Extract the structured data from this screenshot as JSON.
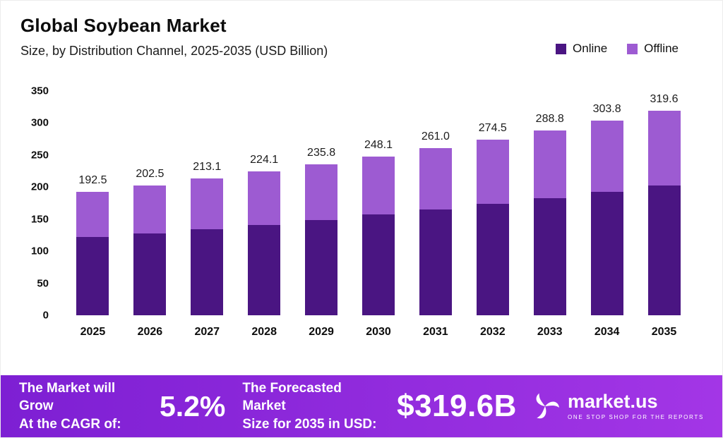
{
  "header": {
    "title": "Global Soybean Market",
    "subtitle": "Size, by Distribution Channel, 2025-2035 (USD Billion)"
  },
  "legend": [
    {
      "label": "Online",
      "color": "#4a1582"
    },
    {
      "label": "Offline",
      "color": "#9d5bd2"
    }
  ],
  "colors": {
    "online": "#4a1582",
    "offline": "#9d5bd2",
    "banner_start": "#7d1fd3",
    "banner_end": "#a336e6",
    "label_text": "#1c1c1c"
  },
  "chart_data": {
    "type": "bar",
    "stacked": true,
    "title": "Global Soybean Market",
    "subtitle": "Size, by Distribution Channel, 2025-2035 (USD Billion)",
    "categories": [
      "2025",
      "2026",
      "2027",
      "2028",
      "2029",
      "2030",
      "2031",
      "2032",
      "2033",
      "2034",
      "2035"
    ],
    "series": [
      {
        "name": "Online",
        "color": "#4a1582",
        "values": [
          122.0,
          128.0,
          134.0,
          141.0,
          149.0,
          157.0,
          165.0,
          174.0,
          183.0,
          193.0,
          202.0
        ]
      },
      {
        "name": "Offline",
        "color": "#9d5bd2",
        "values": [
          70.5,
          74.5,
          79.1,
          83.1,
          86.8,
          91.1,
          96.0,
          100.5,
          105.8,
          110.8,
          117.6
        ]
      }
    ],
    "totals": [
      192.5,
      202.5,
      213.1,
      224.1,
      235.8,
      248.1,
      261.0,
      274.5,
      288.8,
      303.8,
      319.6
    ],
    "total_labels": [
      "192.5",
      "202.5",
      "213.1",
      "224.1",
      "235.8",
      "248.1",
      "261.0",
      "274.5",
      "288.8",
      "303.8",
      "319.6"
    ],
    "xlabel": "",
    "ylabel": "",
    "ylim": [
      0,
      350
    ],
    "yticks": [
      0,
      50,
      100,
      150,
      200,
      250,
      300,
      350
    ],
    "grid": false,
    "legend_position": "top-right"
  },
  "footer": {
    "grow_line1": "The Market will Grow",
    "grow_line2": "At the CAGR of:",
    "cagr_value": "5.2%",
    "forecast_line1": "The Forecasted Market",
    "forecast_line2": "Size for 2035 in USD:",
    "forecast_value": "$319.6B",
    "brand": "market.us",
    "brand_tagline": "ONE STOP SHOP FOR THE REPORTS"
  }
}
